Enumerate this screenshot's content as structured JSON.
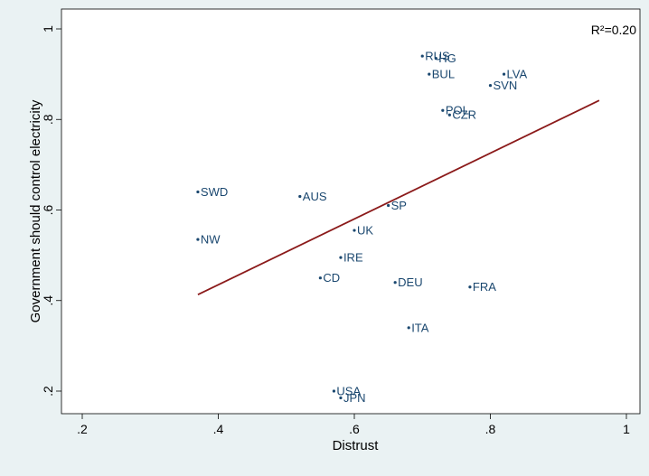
{
  "chart_data": {
    "type": "scatter",
    "xlabel": "Distrust",
    "ylabel": "Government should control electricity",
    "xlim": [
      0.2,
      1.0
    ],
    "ylim": [
      0.2,
      1.0
    ],
    "xticks": [
      ".2",
      ".4",
      ".6",
      ".8",
      "1"
    ],
    "yticks": [
      ".2",
      ".4",
      ".6",
      ".8",
      "1"
    ],
    "annotation": "R²=0.20",
    "grid": false,
    "points": [
      {
        "label": "RUS",
        "x": 0.7,
        "y": 0.94
      },
      {
        "label": "HG",
        "x": 0.72,
        "y": 0.935
      },
      {
        "label": "BUL",
        "x": 0.71,
        "y": 0.9
      },
      {
        "label": "LVA",
        "x": 0.82,
        "y": 0.9
      },
      {
        "label": "SVN",
        "x": 0.8,
        "y": 0.875
      },
      {
        "label": "POL",
        "x": 0.73,
        "y": 0.82
      },
      {
        "label": "CZR",
        "x": 0.74,
        "y": 0.81
      },
      {
        "label": "SWD",
        "x": 0.37,
        "y": 0.64
      },
      {
        "label": "AUS",
        "x": 0.52,
        "y": 0.63
      },
      {
        "label": "SP",
        "x": 0.65,
        "y": 0.61
      },
      {
        "label": "UK",
        "x": 0.6,
        "y": 0.555
      },
      {
        "label": "NW",
        "x": 0.37,
        "y": 0.535
      },
      {
        "label": "IRE",
        "x": 0.58,
        "y": 0.495
      },
      {
        "label": "CD",
        "x": 0.55,
        "y": 0.45
      },
      {
        "label": "DEU",
        "x": 0.66,
        "y": 0.44
      },
      {
        "label": "FRA",
        "x": 0.77,
        "y": 0.43
      },
      {
        "label": "ITA",
        "x": 0.68,
        "y": 0.34
      },
      {
        "label": "USA",
        "x": 0.57,
        "y": 0.2
      },
      {
        "label": "JPN",
        "x": 0.58,
        "y": 0.185
      }
    ],
    "fit_line": {
      "x": [
        0.37,
        0.96
      ],
      "y": [
        0.413,
        0.842
      ],
      "color": "#8b1a1a"
    },
    "marker_color": "#1a476f"
  }
}
